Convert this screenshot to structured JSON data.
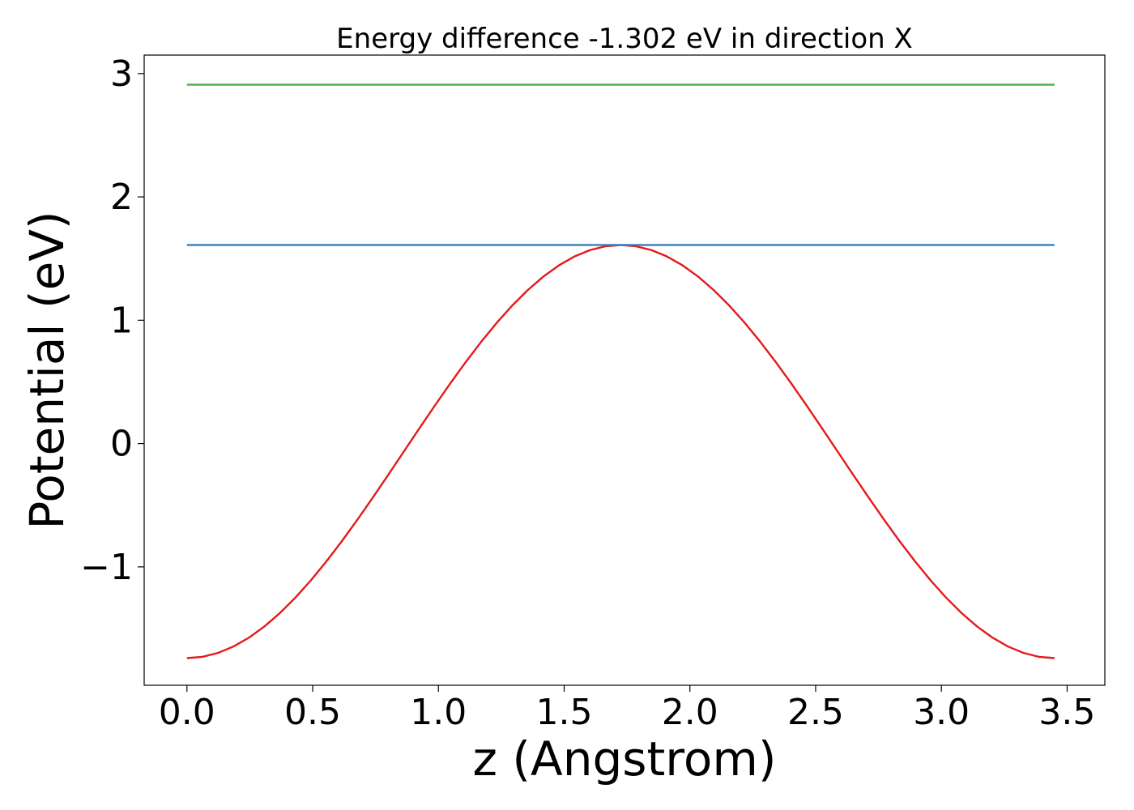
{
  "chart_data": {
    "type": "line",
    "title": "Energy difference -1.302 eV in direction X",
    "xlabel": "z (Angstrom)",
    "ylabel": "Potential (eV)",
    "xlim": [
      -0.17,
      3.65
    ],
    "ylim": [
      -1.96,
      3.15
    ],
    "xticks": [
      0.0,
      0.5,
      1.0,
      1.5,
      2.0,
      2.5,
      3.0,
      3.5
    ],
    "xtick_labels": [
      "0.0",
      "0.5",
      "1.0",
      "1.5",
      "2.0",
      "2.5",
      "3.0",
      "3.5"
    ],
    "yticks": [
      -1,
      0,
      1,
      2,
      3
    ],
    "ytick_labels": [
      "−1",
      "0",
      "1",
      "2",
      "3"
    ],
    "grid": false,
    "series": [
      {
        "color": "#e41a1c",
        "kind": "cosine",
        "x_range": [
          0.0,
          3.45
        ],
        "y_min": -1.74,
        "y_max": 1.61,
        "x_peak": 1.76,
        "samples": 56
      },
      {
        "color": "#377eb8",
        "kind": "constant",
        "x_range": [
          0.0,
          3.45
        ],
        "y": 1.61
      },
      {
        "color": "#4daf4a",
        "kind": "constant",
        "x_range": [
          0.0,
          3.45
        ],
        "y": 2.91
      }
    ]
  }
}
